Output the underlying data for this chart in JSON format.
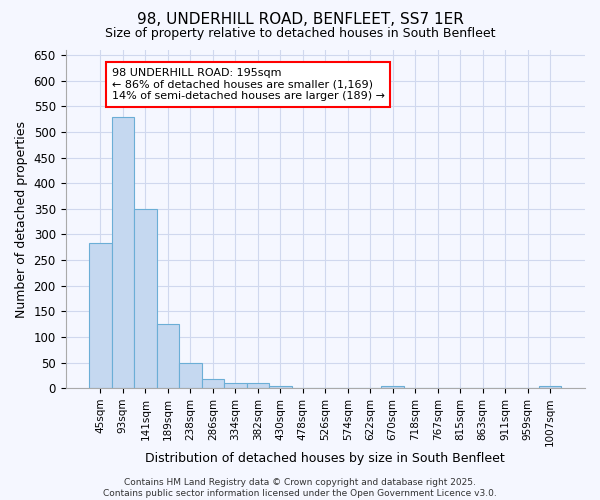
{
  "title1": "98, UNDERHILL ROAD, BENFLEET, SS7 1ER",
  "title2": "Size of property relative to detached houses in South Benfleet",
  "xlabel": "Distribution of detached houses by size in South Benfleet",
  "ylabel": "Number of detached properties",
  "bar_fill_color": "#c5d8f0",
  "bar_edge_color": "#6baed6",
  "categories": [
    "45sqm",
    "93sqm",
    "141sqm",
    "189sqm",
    "238sqm",
    "286sqm",
    "334sqm",
    "382sqm",
    "430sqm",
    "478sqm",
    "526sqm",
    "574sqm",
    "622sqm",
    "670sqm",
    "718sqm",
    "767sqm",
    "815sqm",
    "863sqm",
    "911sqm",
    "959sqm",
    "1007sqm"
  ],
  "values": [
    283,
    530,
    350,
    125,
    50,
    18,
    10,
    10,
    5,
    0,
    0,
    0,
    0,
    5,
    0,
    0,
    0,
    0,
    0,
    0,
    5
  ],
  "annotation_text": "98 UNDERHILL ROAD: 195sqm\n← 86% of detached houses are smaller (1,169)\n14% of semi-detached houses are larger (189) →",
  "ylim": [
    0,
    660
  ],
  "yticks": [
    0,
    50,
    100,
    150,
    200,
    250,
    300,
    350,
    400,
    450,
    500,
    550,
    600,
    650
  ],
  "grid_color": "#d0d8ee",
  "background_color": "#f5f7ff",
  "title_fontsize": 11,
  "subtitle_fontsize": 9,
  "footer_line1": "Contains HM Land Registry data © Crown copyright and database right 2025.",
  "footer_line2": "Contains public sector information licensed under the Open Government Licence v3.0."
}
